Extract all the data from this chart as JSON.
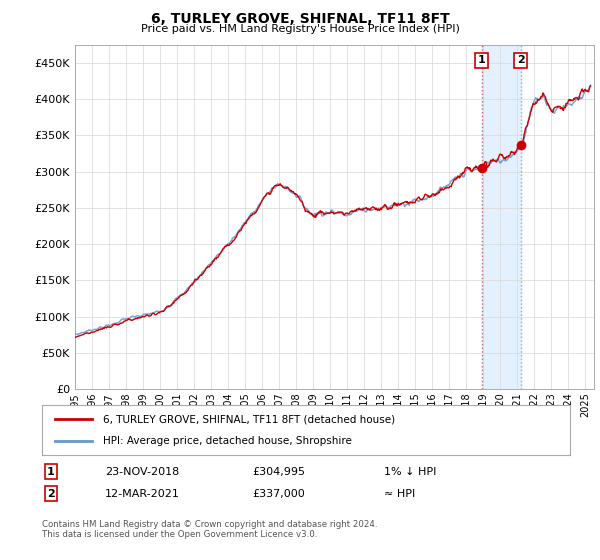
{
  "title": "6, TURLEY GROVE, SHIFNAL, TF11 8FT",
  "subtitle": "Price paid vs. HM Land Registry's House Price Index (HPI)",
  "ytick_values": [
    0,
    50000,
    100000,
    150000,
    200000,
    250000,
    300000,
    350000,
    400000,
    450000
  ],
  "ylim": [
    0,
    475000
  ],
  "xlim_start": 1995.0,
  "xlim_end": 2025.5,
  "hpi_color": "#6699cc",
  "price_color": "#cc0000",
  "marker1_x": 2018.9,
  "marker1_y": 304995,
  "marker2_x": 2021.2,
  "marker2_y": 337000,
  "legend_line1": "6, TURLEY GROVE, SHIFNAL, TF11 8FT (detached house)",
  "legend_line2": "HPI: Average price, detached house, Shropshire",
  "table_row1": [
    "1",
    "23-NOV-2018",
    "£304,995",
    "1% ↓ HPI"
  ],
  "table_row2": [
    "2",
    "12-MAR-2021",
    "£337,000",
    "≈ HPI"
  ],
  "footer": "Contains HM Land Registry data © Crown copyright and database right 2024.\nThis data is licensed under the Open Government Licence v3.0.",
  "shade_color": "#ddeeff",
  "shade_alpha": 0.8,
  "grid_color": "#dddddd"
}
